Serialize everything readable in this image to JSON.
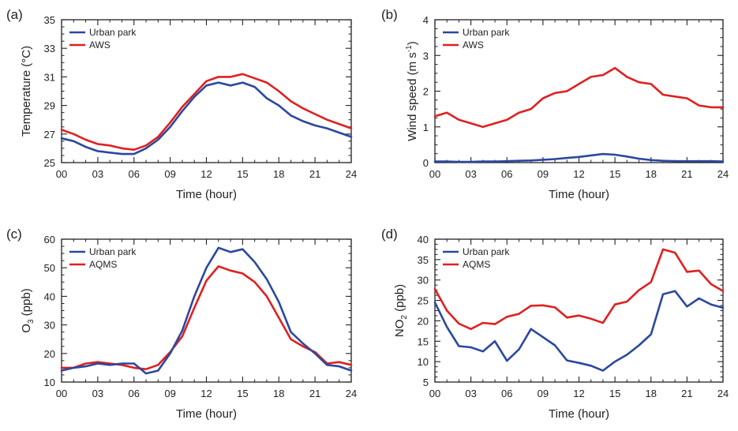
{
  "chart_data": [
    {
      "type": "line",
      "panel_label": "(a)",
      "xlabel": "Time (hour)",
      "ylabel": "Temperature (°C)",
      "xlim": [
        0,
        24
      ],
      "ylim": [
        25,
        35
      ],
      "xticks": [
        "00",
        "03",
        "06",
        "09",
        "12",
        "15",
        "18",
        "21",
        "24"
      ],
      "yticks": [
        25,
        27,
        29,
        31,
        33,
        35
      ],
      "x": [
        0,
        1,
        2,
        3,
        4,
        5,
        6,
        7,
        8,
        9,
        10,
        11,
        12,
        13,
        14,
        15,
        16,
        17,
        18,
        19,
        20,
        21,
        22,
        23,
        24
      ],
      "series": [
        {
          "name": "Urban park",
          "color": "#2b48a0",
          "values": [
            26.7,
            26.5,
            26.1,
            25.8,
            25.7,
            25.6,
            25.6,
            26.0,
            26.6,
            27.5,
            28.6,
            29.6,
            30.4,
            30.6,
            30.4,
            30.6,
            30.3,
            29.5,
            29.0,
            28.3,
            27.9,
            27.6,
            27.4,
            27.1,
            26.8
          ]
        },
        {
          "name": "AWS",
          "color": "#e02020",
          "values": [
            27.3,
            27.0,
            26.6,
            26.3,
            26.2,
            26.0,
            25.9,
            26.2,
            26.8,
            27.8,
            28.9,
            29.8,
            30.7,
            31.0,
            31.0,
            31.2,
            30.9,
            30.6,
            30.0,
            29.3,
            28.8,
            28.4,
            28.0,
            27.7,
            27.4
          ]
        }
      ]
    },
    {
      "type": "line",
      "panel_label": "(b)",
      "xlabel": "Time (hour)",
      "ylabel": "Wind speed (m s-1)",
      "ylabel_main": "Wind speed (m s",
      "ylabel_sup": "-1",
      "ylabel_end": ")",
      "xlim": [
        0,
        24
      ],
      "ylim": [
        0,
        4
      ],
      "xticks": [
        "00",
        "03",
        "06",
        "09",
        "12",
        "15",
        "18",
        "21",
        "24"
      ],
      "yticks": [
        0,
        1,
        2,
        3,
        4
      ],
      "x": [
        0,
        1,
        2,
        3,
        4,
        5,
        6,
        7,
        8,
        9,
        10,
        11,
        12,
        13,
        14,
        15,
        16,
        17,
        18,
        19,
        20,
        21,
        22,
        23,
        24
      ],
      "series": [
        {
          "name": "Urban park",
          "color": "#2b48a0",
          "values": [
            0.03,
            0.03,
            0.02,
            0.02,
            0.03,
            0.03,
            0.04,
            0.05,
            0.06,
            0.08,
            0.1,
            0.13,
            0.16,
            0.2,
            0.24,
            0.22,
            0.17,
            0.11,
            0.07,
            0.05,
            0.04,
            0.04,
            0.04,
            0.04,
            0.03
          ]
        },
        {
          "name": "AWS",
          "color": "#e02020",
          "values": [
            1.3,
            1.4,
            1.2,
            1.1,
            1.0,
            1.1,
            1.2,
            1.4,
            1.5,
            1.8,
            1.95,
            2.0,
            2.2,
            2.4,
            2.45,
            2.65,
            2.4,
            2.25,
            2.2,
            1.9,
            1.85,
            1.8,
            1.6,
            1.55,
            1.55
          ]
        }
      ]
    },
    {
      "type": "line",
      "panel_label": "(c)",
      "xlabel": "Time (hour)",
      "ylabel": "O3 (ppb)",
      "ylabel_main": "O",
      "ylabel_sub": "3",
      "ylabel_end": " (ppb)",
      "xlim": [
        0,
        24
      ],
      "ylim": [
        10,
        60
      ],
      "xticks": [
        "00",
        "03",
        "06",
        "09",
        "12",
        "15",
        "18",
        "21",
        "24"
      ],
      "yticks": [
        10,
        20,
        30,
        40,
        50,
        60
      ],
      "x": [
        0,
        1,
        2,
        3,
        4,
        5,
        6,
        7,
        8,
        9,
        10,
        11,
        12,
        13,
        14,
        15,
        16,
        17,
        18,
        19,
        20,
        21,
        22,
        23,
        24
      ],
      "series": [
        {
          "name": "Urban park",
          "color": "#2b48a0",
          "values": [
            14.0,
            15.0,
            15.5,
            16.5,
            16.0,
            16.5,
            16.5,
            13.0,
            14.0,
            20.0,
            28.0,
            40.0,
            50.0,
            57.0,
            55.5,
            56.5,
            52.0,
            46.0,
            38.0,
            27.5,
            23.5,
            20.0,
            16.0,
            15.5,
            14.0
          ]
        },
        {
          "name": "AQMS",
          "color": "#e02020",
          "values": [
            15.0,
            15.0,
            16.5,
            17.0,
            16.5,
            16.0,
            15.0,
            14.5,
            16.0,
            20.5,
            26.0,
            36.0,
            45.5,
            50.5,
            49.0,
            48.0,
            45.0,
            40.0,
            32.5,
            25.0,
            22.5,
            20.5,
            16.5,
            17.0,
            16.0
          ]
        }
      ]
    },
    {
      "type": "line",
      "panel_label": "(d)",
      "xlabel": "Time (hour)",
      "ylabel": "NO2 (ppb)",
      "ylabel_main": "NO",
      "ylabel_sub": "2",
      "ylabel_end": " (ppb)",
      "xlim": [
        0,
        24
      ],
      "ylim": [
        5,
        40
      ],
      "xticks": [
        "00",
        "03",
        "06",
        "09",
        "12",
        "15",
        "18",
        "21",
        "24"
      ],
      "yticks": [
        5,
        10,
        15,
        20,
        25,
        30,
        35,
        40
      ],
      "x": [
        0,
        1,
        2,
        3,
        4,
        5,
        6,
        7,
        8,
        9,
        10,
        11,
        12,
        13,
        14,
        15,
        16,
        17,
        18,
        19,
        20,
        21,
        22,
        23,
        24
      ],
      "series": [
        {
          "name": "Urban park",
          "color": "#2b48a0",
          "values": [
            24.5,
            18.5,
            13.8,
            13.5,
            12.5,
            15.0,
            10.2,
            13.0,
            18.0,
            16.0,
            14.0,
            10.3,
            9.7,
            9.0,
            7.8,
            10.0,
            11.7,
            14.0,
            16.7,
            26.5,
            27.3,
            23.5,
            25.5,
            24.0,
            23.2
          ]
        },
        {
          "name": "AQMS",
          "color": "#e02020",
          "values": [
            27.8,
            22.5,
            19.3,
            18.0,
            19.5,
            19.2,
            21.0,
            21.7,
            23.7,
            23.8,
            23.3,
            20.8,
            21.3,
            20.5,
            19.5,
            24.0,
            24.7,
            27.5,
            29.5,
            37.5,
            36.7,
            32.0,
            32.3,
            29.0,
            27.3
          ]
        }
      ]
    }
  ]
}
